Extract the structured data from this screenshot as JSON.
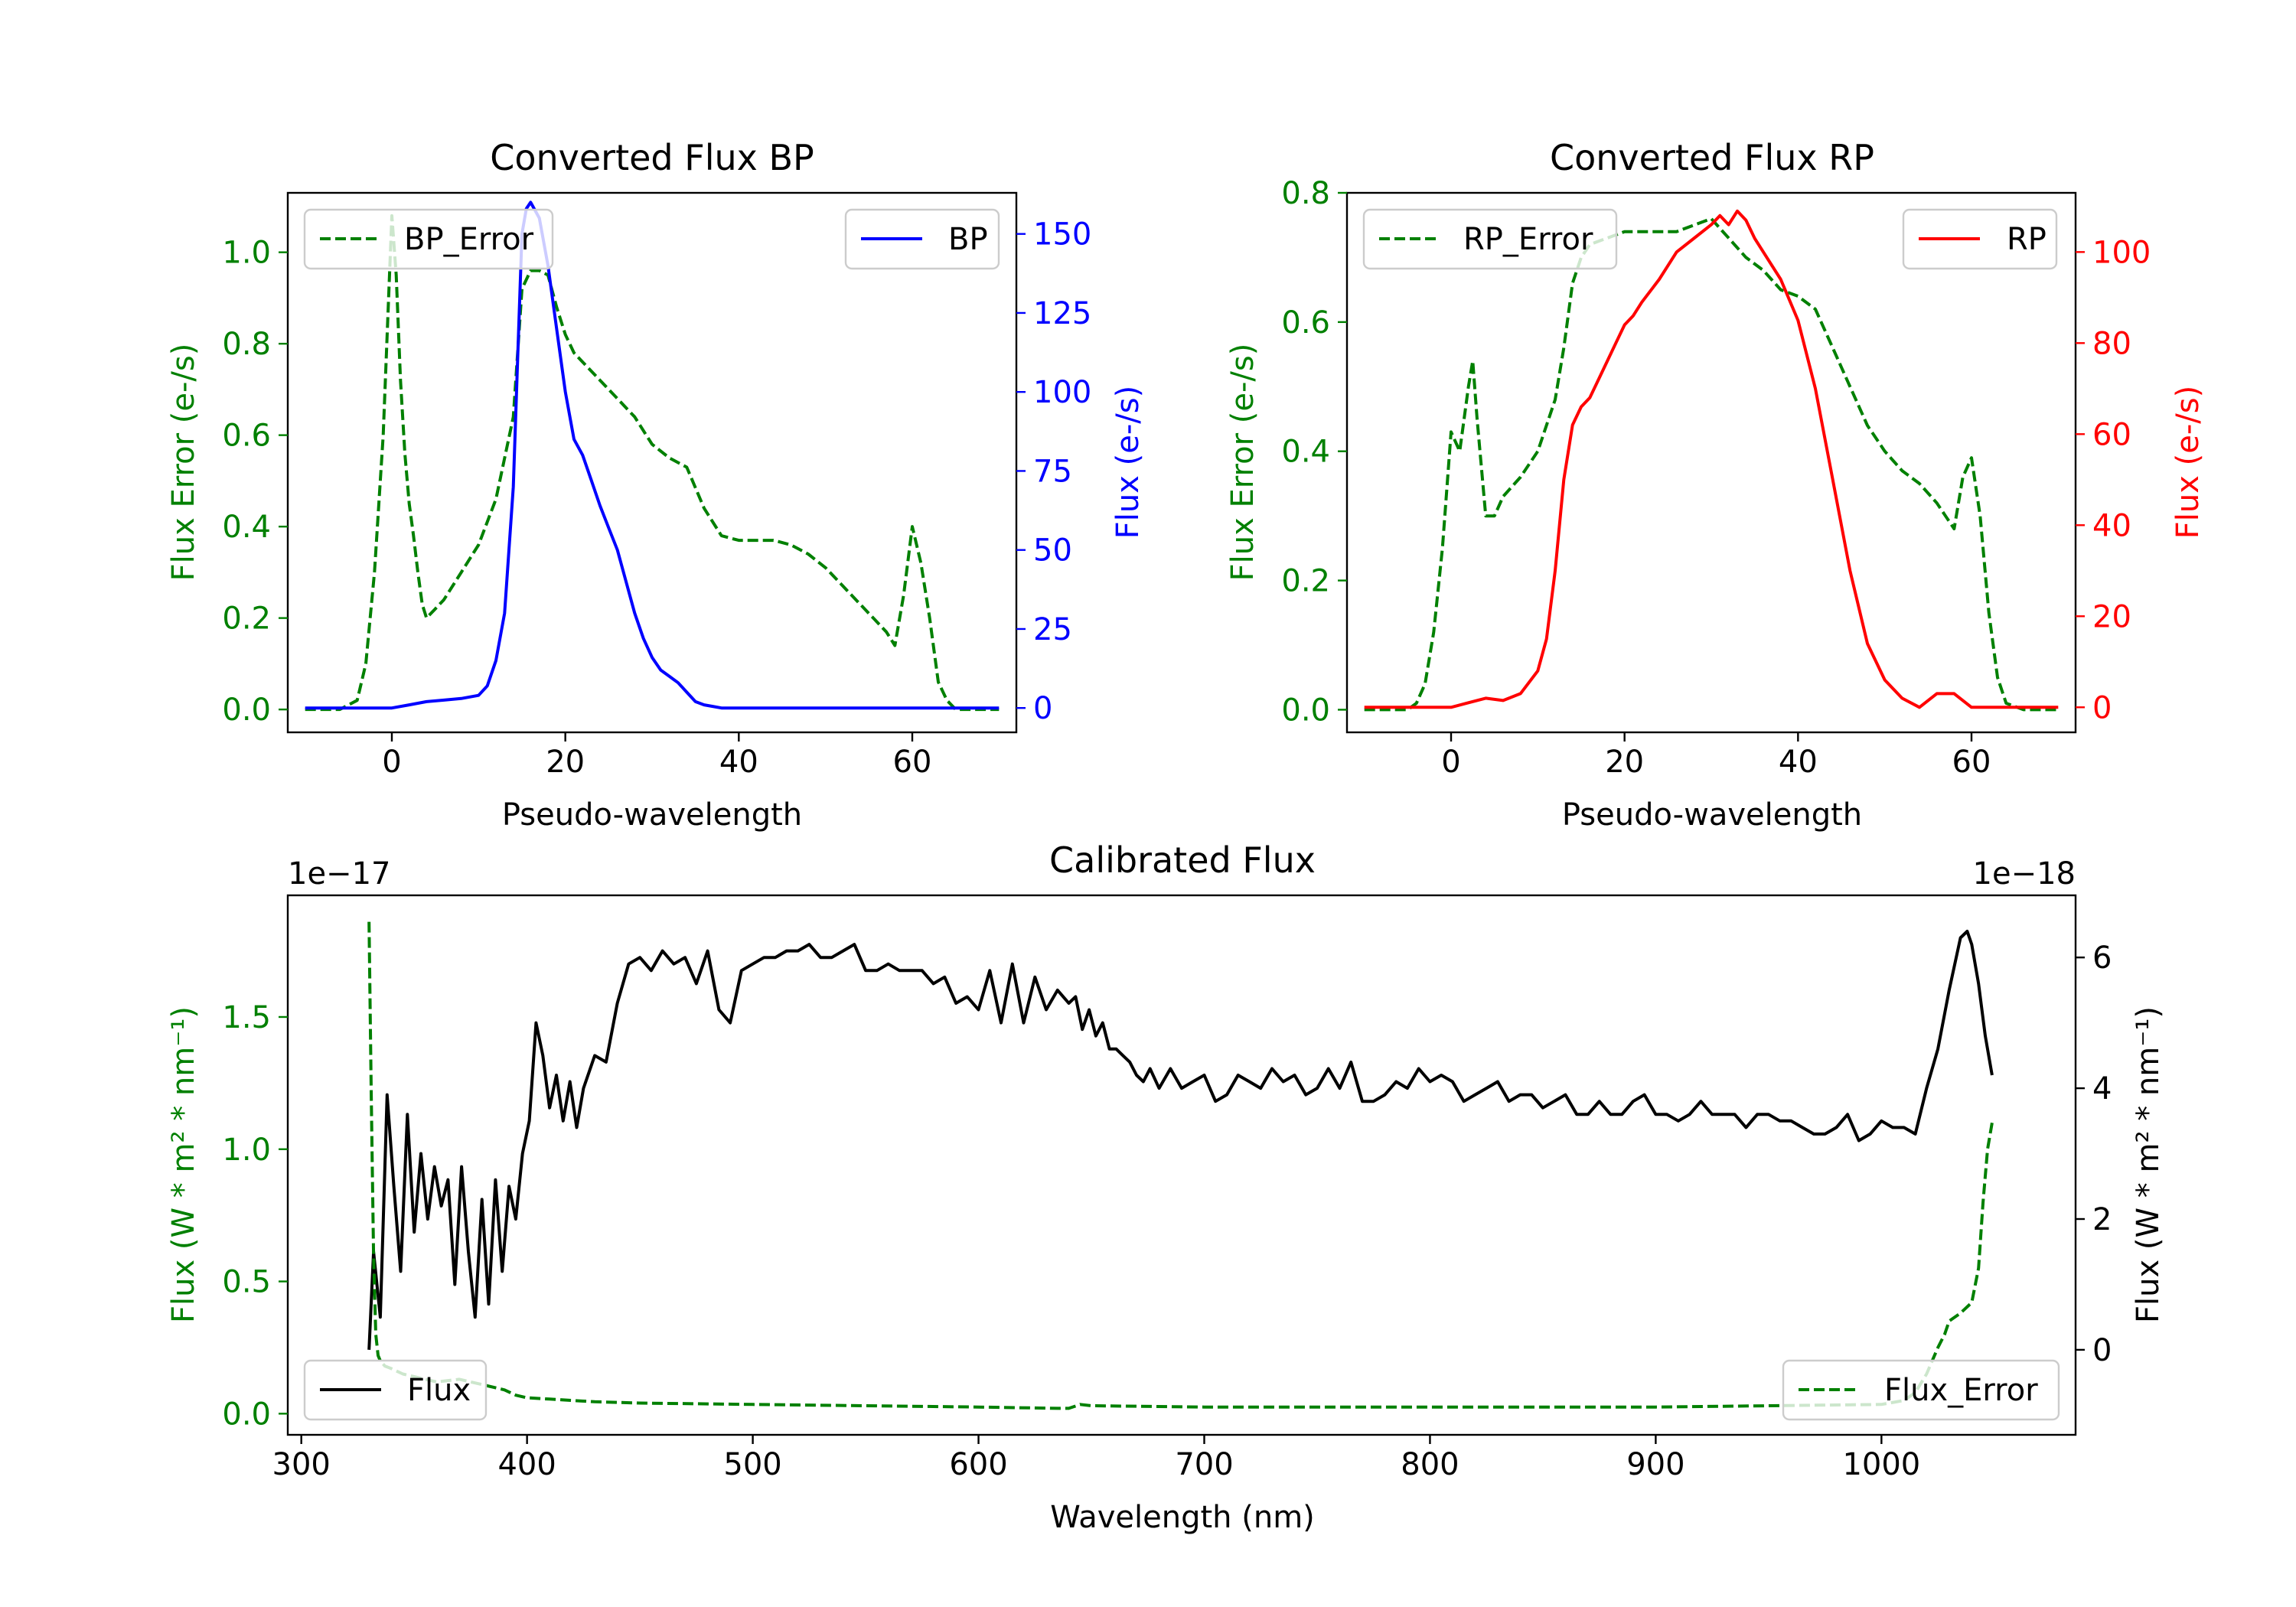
{
  "colors": {
    "green": "#008000",
    "blue": "#0000ff",
    "red": "#ff0000",
    "black": "#000000",
    "axis": "#000000"
  },
  "chart_data": [
    {
      "id": "bp",
      "type": "line",
      "title": "Converted Flux BP",
      "xlabel": "Pseudo-wavelength",
      "xlim": [
        -12,
        72
      ],
      "xticks": [
        0,
        20,
        40,
        60
      ],
      "left_axis": {
        "label": "Flux Error (e-/s)",
        "color": "#008000",
        "ylim": [
          -0.05,
          1.13
        ],
        "ticks": [
          "0.0",
          "0.2",
          "0.4",
          "0.6",
          "0.8",
          "1.0"
        ],
        "tick_values": [
          0.0,
          0.2,
          0.4,
          0.6,
          0.8,
          1.0
        ]
      },
      "right_axis": {
        "label": "Flux (e-/s)",
        "color": "#0000ff",
        "ylim": [
          -7.7,
          163
        ],
        "ticks": [
          "0",
          "25",
          "50",
          "75",
          "100",
          "125",
          "150"
        ],
        "tick_values": [
          0,
          25,
          50,
          75,
          100,
          125,
          150
        ]
      },
      "series": [
        {
          "name": "BP_Error",
          "axis": "left",
          "style": "dashed",
          "color": "#008000",
          "x": [
            -10,
            -6,
            -4,
            -3,
            -2,
            -1,
            0,
            0.5,
            1,
            1.5,
            2,
            2.5,
            3,
            3.5,
            4,
            5,
            6,
            8,
            10,
            12,
            14,
            15,
            16,
            17,
            18,
            19,
            20,
            21,
            22,
            24,
            26,
            28,
            30,
            32,
            34,
            36,
            38,
            40,
            42,
            44,
            46,
            48,
            50,
            52,
            54,
            56,
            57,
            58,
            59,
            60,
            61,
            62,
            63,
            64,
            65,
            66,
            68,
            70
          ],
          "y": [
            0,
            0,
            0.02,
            0.1,
            0.3,
            0.6,
            1.08,
            0.95,
            0.72,
            0.56,
            0.45,
            0.38,
            0.3,
            0.23,
            0.2,
            0.22,
            0.24,
            0.3,
            0.36,
            0.46,
            0.64,
            0.92,
            0.96,
            0.96,
            0.95,
            0.88,
            0.82,
            0.78,
            0.76,
            0.72,
            0.68,
            0.64,
            0.58,
            0.55,
            0.53,
            0.44,
            0.38,
            0.37,
            0.37,
            0.37,
            0.36,
            0.34,
            0.31,
            0.27,
            0.23,
            0.19,
            0.17,
            0.14,
            0.25,
            0.4,
            0.32,
            0.2,
            0.06,
            0.02,
            0.0,
            0.0,
            0.0,
            0.0
          ]
        },
        {
          "name": "BP",
          "axis": "right",
          "style": "solid",
          "color": "#0000ff",
          "x": [
            -10,
            -5,
            -2,
            0,
            2,
            4,
            6,
            8,
            10,
            11,
            12,
            13,
            14,
            14.5,
            15,
            15.5,
            16,
            17,
            18,
            19,
            20,
            21,
            22,
            23,
            24,
            25,
            26,
            27,
            28,
            29,
            30,
            31,
            32,
            33,
            34,
            35,
            36,
            37,
            38,
            40,
            42,
            44,
            46,
            48,
            50,
            52,
            54,
            56,
            58,
            60,
            62,
            64,
            66,
            68,
            70
          ],
          "y": [
            0,
            0,
            0,
            0,
            1,
            2,
            2.5,
            3,
            4,
            7,
            15,
            30,
            70,
            110,
            150,
            158,
            160,
            155,
            140,
            120,
            100,
            85,
            80,
            72,
            64,
            57,
            50,
            40,
            30,
            22,
            16,
            12,
            10,
            8,
            5,
            2,
            1,
            0.5,
            0,
            0,
            0,
            0,
            0,
            0,
            0,
            0,
            0,
            0,
            0,
            0,
            0,
            0,
            0,
            0,
            0
          ]
        }
      ],
      "legend_left": "BP_Error",
      "legend_right": "BP"
    },
    {
      "id": "rp",
      "type": "line",
      "title": "Converted Flux RP",
      "xlabel": "Pseudo-wavelength",
      "xlim": [
        -12,
        72
      ],
      "xticks": [
        0,
        20,
        40,
        60
      ],
      "left_axis": {
        "label": "Flux Error (e-/s)",
        "color": "#008000",
        "ylim": [
          -0.035,
          0.8
        ],
        "ticks": [
          "0.0",
          "0.2",
          "0.4",
          "0.6",
          "0.8"
        ],
        "tick_values": [
          0.0,
          0.2,
          0.4,
          0.6,
          0.8
        ]
      },
      "right_axis": {
        "label": "Flux (e-/s)",
        "color": "#ff0000",
        "ylim": [
          -5.5,
          113
        ],
        "ticks": [
          "0",
          "20",
          "40",
          "60",
          "80",
          "100"
        ],
        "tick_values": [
          0,
          20,
          40,
          60,
          80,
          100
        ]
      },
      "series": [
        {
          "name": "RP_Error",
          "axis": "left",
          "style": "dashed",
          "color": "#008000",
          "x": [
            -10,
            -5,
            -4,
            -3,
            -2,
            -1,
            0,
            1,
            2,
            2.5,
            3,
            4,
            5,
            6,
            8,
            10,
            12,
            13,
            14,
            15,
            16,
            18,
            20,
            22,
            24,
            26,
            28,
            30,
            32,
            34,
            36,
            38,
            40,
            42,
            44,
            46,
            48,
            50,
            52,
            54,
            56,
            57,
            58,
            59,
            60,
            61,
            62,
            63,
            64,
            66,
            68,
            70
          ],
          "y": [
            0,
            0,
            0.01,
            0.04,
            0.12,
            0.25,
            0.43,
            0.4,
            0.5,
            0.54,
            0.45,
            0.3,
            0.3,
            0.33,
            0.36,
            0.4,
            0.48,
            0.56,
            0.66,
            0.7,
            0.72,
            0.73,
            0.74,
            0.74,
            0.74,
            0.74,
            0.75,
            0.76,
            0.73,
            0.7,
            0.68,
            0.65,
            0.64,
            0.62,
            0.56,
            0.5,
            0.44,
            0.4,
            0.37,
            0.35,
            0.32,
            0.3,
            0.28,
            0.36,
            0.39,
            0.3,
            0.15,
            0.05,
            0.01,
            0,
            0,
            0
          ]
        },
        {
          "name": "RP",
          "axis": "right",
          "style": "solid",
          "color": "#ff0000",
          "x": [
            -10,
            -5,
            -2,
            0,
            2,
            4,
            6,
            8,
            10,
            11,
            12,
            13,
            14,
            15,
            16,
            17,
            18,
            19,
            20,
            21,
            22,
            24,
            26,
            28,
            30,
            31,
            32,
            33,
            34,
            35,
            36,
            38,
            40,
            42,
            44,
            46,
            48,
            50,
            52,
            54,
            56,
            58,
            60,
            62,
            64,
            66,
            68,
            70
          ],
          "y": [
            0,
            0,
            0,
            0,
            1,
            2,
            1.5,
            3,
            8,
            15,
            30,
            50,
            62,
            66,
            68,
            72,
            76,
            80,
            84,
            86,
            89,
            94,
            100,
            103,
            106,
            108,
            106,
            109,
            107,
            103,
            100,
            94,
            85,
            70,
            50,
            30,
            14,
            6,
            2,
            0,
            3,
            3,
            0,
            0,
            0,
            0,
            0,
            0
          ]
        }
      ],
      "legend_left": "RP_Error",
      "legend_right": "RP"
    },
    {
      "id": "cal",
      "type": "line",
      "title": "Calibrated Flux",
      "xlabel": "Wavelength (nm)",
      "xlim": [
        294,
        1086
      ],
      "xticks": [
        300,
        400,
        500,
        600,
        700,
        800,
        900,
        1000
      ],
      "left_axis": {
        "label": "Flux (W * m² * nm⁻¹)",
        "color": "#008000",
        "offset_text": "1e−17",
        "ylim": [
          -0.08,
          1.96
        ],
        "ticks": [
          "0.0",
          "0.5",
          "1.0",
          "1.5"
        ],
        "tick_values": [
          0.0,
          0.5,
          1.0,
          1.5
        ]
      },
      "right_axis": {
        "label": "Flux (W * m² * nm⁻¹)",
        "color": "#000000",
        "offset_text": "1e−18",
        "ylim": [
          -1.3,
          6.95
        ],
        "ticks": [
          "0",
          "2",
          "4",
          "6"
        ],
        "tick_values": [
          0,
          2,
          4,
          6
        ]
      },
      "series": [
        {
          "name": "Flux",
          "axis": "right",
          "style": "solid",
          "color": "#000000",
          "x": [
            330,
            332,
            335,
            338,
            341,
            344,
            347,
            350,
            353,
            356,
            359,
            362,
            365,
            368,
            371,
            374,
            377,
            380,
            383,
            386,
            389,
            392,
            395,
            398,
            401,
            404,
            407,
            410,
            413,
            416,
            419,
            422,
            425,
            430,
            435,
            440,
            445,
            450,
            455,
            460,
            465,
            470,
            475,
            480,
            485,
            490,
            495,
            500,
            505,
            510,
            515,
            520,
            525,
            530,
            535,
            540,
            545,
            550,
            555,
            560,
            565,
            570,
            575,
            580,
            585,
            590,
            595,
            600,
            605,
            610,
            615,
            620,
            625,
            630,
            635,
            640,
            643,
            646,
            649,
            652,
            655,
            658,
            661,
            664,
            667,
            670,
            673,
            676,
            680,
            685,
            690,
            695,
            700,
            705,
            710,
            715,
            720,
            725,
            730,
            735,
            740,
            745,
            750,
            755,
            760,
            765,
            770,
            775,
            780,
            785,
            790,
            795,
            800,
            805,
            810,
            815,
            820,
            825,
            830,
            835,
            840,
            845,
            850,
            855,
            860,
            865,
            870,
            875,
            880,
            885,
            890,
            895,
            900,
            905,
            910,
            915,
            920,
            925,
            930,
            935,
            940,
            945,
            950,
            955,
            960,
            965,
            970,
            975,
            980,
            985,
            990,
            995,
            1000,
            1005,
            1010,
            1015,
            1020,
            1025,
            1030,
            1035,
            1038,
            1040,
            1043,
            1046,
            1049
          ],
          "y": [
            0,
            1.5,
            0.5,
            3.9,
            2.5,
            1.2,
            3.6,
            1.8,
            3.0,
            2.0,
            2.8,
            2.2,
            2.6,
            1.0,
            2.8,
            1.5,
            0.5,
            2.3,
            0.7,
            2.6,
            1.2,
            2.5,
            2.0,
            3.0,
            3.5,
            5.0,
            4.5,
            3.7,
            4.2,
            3.5,
            4.1,
            3.4,
            4.0,
            4.5,
            4.4,
            5.3,
            5.9,
            6.0,
            5.8,
            6.1,
            5.9,
            6.0,
            5.6,
            6.1,
            5.2,
            5.0,
            5.8,
            5.9,
            6.0,
            6.0,
            6.1,
            6.1,
            6.2,
            6.0,
            6.0,
            6.1,
            6.2,
            5.8,
            5.8,
            5.9,
            5.8,
            5.8,
            5.8,
            5.6,
            5.7,
            5.3,
            5.4,
            5.2,
            5.8,
            5.0,
            5.9,
            5.0,
            5.7,
            5.2,
            5.5,
            5.3,
            5.4,
            4.9,
            5.2,
            4.8,
            5.0,
            4.6,
            4.6,
            4.5,
            4.4,
            4.2,
            4.1,
            4.3,
            4.0,
            4.3,
            4.0,
            4.1,
            4.2,
            3.8,
            3.9,
            4.2,
            4.1,
            4.0,
            4.3,
            4.1,
            4.2,
            3.9,
            4.0,
            4.3,
            4.0,
            4.4,
            3.8,
            3.8,
            3.9,
            4.1,
            4.0,
            4.3,
            4.1,
            4.2,
            4.1,
            3.8,
            3.9,
            4.0,
            4.1,
            3.8,
            3.9,
            3.9,
            3.7,
            3.8,
            3.9,
            3.6,
            3.6,
            3.8,
            3.6,
            3.6,
            3.8,
            3.9,
            3.6,
            3.6,
            3.5,
            3.6,
            3.8,
            3.6,
            3.6,
            3.6,
            3.4,
            3.6,
            3.6,
            3.5,
            3.5,
            3.4,
            3.3,
            3.3,
            3.4,
            3.6,
            3.2,
            3.3,
            3.5,
            3.4,
            3.4,
            3.3,
            4.0,
            4.6,
            5.5,
            6.3,
            6.4,
            6.2,
            5.6,
            4.8,
            4.2
          ]
        },
        {
          "name": "Flux_Error",
          "axis": "left",
          "style": "dashed",
          "color": "#008000",
          "x": [
            330,
            331,
            332,
            333,
            334,
            335,
            337,
            340,
            345,
            350,
            360,
            370,
            380,
            390,
            395,
            400,
            410,
            420,
            430,
            450,
            500,
            550,
            600,
            635,
            640,
            645,
            650,
            700,
            750,
            800,
            850,
            900,
            950,
            1000,
            1010,
            1015,
            1020,
            1025,
            1028,
            1030,
            1035,
            1040,
            1043,
            1045,
            1047,
            1049
          ],
          "y": [
            1.86,
            1.2,
            0.6,
            0.3,
            0.22,
            0.2,
            0.18,
            0.17,
            0.15,
            0.14,
            0.12,
            0.13,
            0.11,
            0.09,
            0.07,
            0.06,
            0.055,
            0.05,
            0.045,
            0.04,
            0.035,
            0.03,
            0.025,
            0.02,
            0.02,
            0.035,
            0.03,
            0.025,
            0.025,
            0.025,
            0.025,
            0.025,
            0.03,
            0.035,
            0.05,
            0.08,
            0.15,
            0.25,
            0.3,
            0.35,
            0.38,
            0.42,
            0.55,
            0.8,
            1.0,
            1.1
          ]
        }
      ],
      "legend_left": "Flux",
      "legend_right": "Flux_Error"
    }
  ]
}
